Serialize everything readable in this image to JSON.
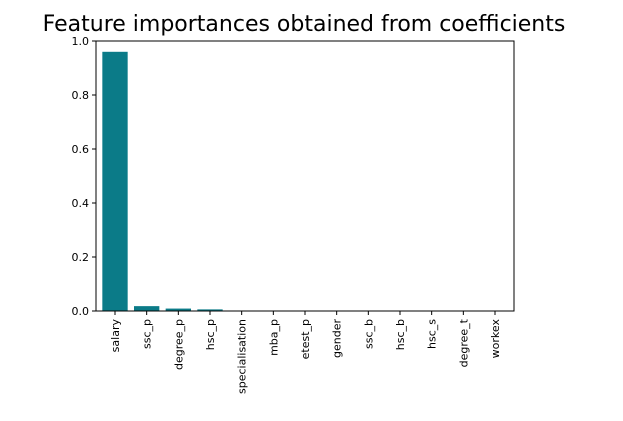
{
  "chart_data": {
    "type": "bar",
    "title": "Feature importances obtained from coefficients",
    "xlabel": "",
    "ylabel": "",
    "categories": [
      "salary",
      "ssc_p",
      "degree_p",
      "hsc_p",
      "specialisation",
      "mba_p",
      "etest_p",
      "gender",
      "ssc_b",
      "hsc_b",
      "hsc_s",
      "degree_t",
      "workex"
    ],
    "values": [
      0.96,
      0.018,
      0.009,
      0.006,
      0.001,
      0.0006,
      0.0004,
      0.0003,
      0.0002,
      0.0002,
      0.0002,
      0.0001,
      0.0001
    ],
    "ylim": [
      0,
      1.0
    ],
    "yticks": [
      "0.0",
      "0.2",
      "0.4",
      "0.6",
      "0.8",
      "1.0"
    ],
    "grid": false,
    "bar_color": "#0b7b88"
  }
}
